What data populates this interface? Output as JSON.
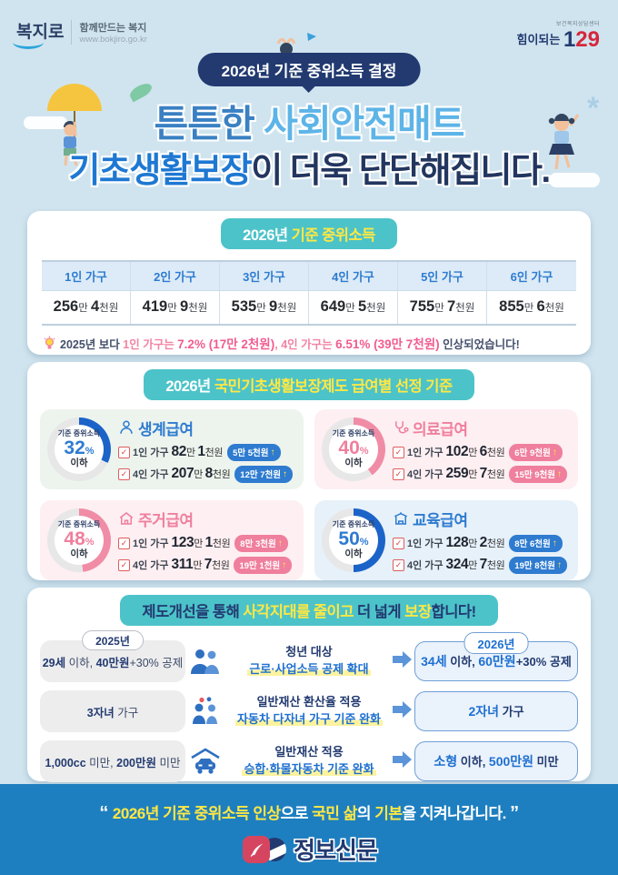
{
  "header": {
    "bokjiro": {
      "logo_text": "복지로",
      "tagline": "함께만드는 복지",
      "url": "www.bokjiro.go.kr"
    },
    "call129": {
      "small": "보건복지상담센터",
      "prefix": "힘이되는 ",
      "num_a": "1",
      "num_b": "29"
    },
    "top_badge": "2026년 기준 중위소득 결정",
    "title1": [
      {
        "t": "튼튼한 ",
        "c": "t1a"
      },
      {
        "t": "사회안전매트",
        "c": "t1b"
      }
    ],
    "title2": [
      {
        "t": "기초생활보장",
        "c": "t2a"
      },
      {
        "t": "이 더욱 ",
        "c": "t2b"
      },
      {
        "t": "단단",
        "c": "t2c"
      },
      {
        "t": "해집니다.",
        "c": "t2b"
      }
    ]
  },
  "median_card": {
    "badge": [
      {
        "t": "2026년 ",
        "c": "wt"
      },
      {
        "t": "기준 중위소득",
        "c": "yl"
      }
    ],
    "columns": [
      "1인 가구",
      "2인 가구",
      "3인 가구",
      "4인 가구",
      "5인 가구",
      "6인 가구"
    ],
    "values": [
      [
        {
          "t": "256",
          "c": "vn"
        },
        {
          "t": "만 ",
          "c": "vu"
        },
        {
          "t": "4",
          "c": "vn"
        },
        {
          "t": "천원",
          "c": "vu"
        }
      ],
      [
        {
          "t": "419",
          "c": "vn"
        },
        {
          "t": "만 ",
          "c": "vu"
        },
        {
          "t": "9",
          "c": "vn"
        },
        {
          "t": "천원",
          "c": "vu"
        }
      ],
      [
        {
          "t": "535",
          "c": "vn"
        },
        {
          "t": "만 ",
          "c": "vu"
        },
        {
          "t": "9",
          "c": "vn"
        },
        {
          "t": "천원",
          "c": "vu"
        }
      ],
      [
        {
          "t": "649",
          "c": "vn"
        },
        {
          "t": "만 ",
          "c": "vu"
        },
        {
          "t": "5",
          "c": "vn"
        },
        {
          "t": "천원",
          "c": "vu"
        }
      ],
      [
        {
          "t": "755",
          "c": "vn"
        },
        {
          "t": "만 ",
          "c": "vu"
        },
        {
          "t": "7",
          "c": "vn"
        },
        {
          "t": "천원",
          "c": "vu"
        }
      ],
      [
        {
          "t": "855",
          "c": "vn"
        },
        {
          "t": "만 ",
          "c": "vu"
        },
        {
          "t": "6",
          "c": "vn"
        },
        {
          "t": "천원",
          "c": "vu"
        }
      ]
    ],
    "note": [
      {
        "t": "2025년 보다 ",
        "c": "nt"
      },
      {
        "t": "1인 가구는 ",
        "c": "np"
      },
      {
        "t": "7.2% (17만 2천원)",
        "c": "npb"
      },
      {
        "t": ", ",
        "c": "np"
      },
      {
        "t": "4인 가구는 ",
        "c": "np"
      },
      {
        "t": "6.51% (39만 7천원)",
        "c": "npb"
      },
      {
        "t": " 인상되었습니다!",
        "c": "nt"
      }
    ]
  },
  "benefits_card": {
    "badge": [
      {
        "t": "2026년 ",
        "c": "wt"
      },
      {
        "t": "국민기초생활보장제도 급여별 선정 기준",
        "c": "yl"
      }
    ],
    "items": [
      {
        "name": "생계급여",
        "icon": "person-icon",
        "theme": "blue",
        "ring": "#1b63c8",
        "percent": 32,
        "percent_label": "기준 중위소득",
        "percent_rich": [
          {
            "t": "32",
            "c": "pn"
          },
          {
            "t": "%",
            "c": "ps"
          }
        ],
        "below": "이하",
        "rows": [
          {
            "label": "1인 가구",
            "amount": [
              {
                "t": "82",
                "c": "bn"
              },
              {
                "t": "만 ",
                "c": "bu"
              },
              {
                "t": "1",
                "c": "bn"
              },
              {
                "t": "천원",
                "c": "bu"
              }
            ],
            "badge": "5만 5천원"
          },
          {
            "label": "4인 가구",
            "amount": [
              {
                "t": "207",
                "c": "bn"
              },
              {
                "t": "만 ",
                "c": "bu"
              },
              {
                "t": "8",
                "c": "bn"
              },
              {
                "t": "천원",
                "c": "bu"
              }
            ],
            "badge": "12만 7천원"
          }
        ]
      },
      {
        "name": "의료급여",
        "icon": "stethoscope-icon",
        "theme": "pink",
        "ring": "#f08ca6",
        "percent": 40,
        "percent_label": "기준 중위소득",
        "percent_rich": [
          {
            "t": "40",
            "c": "pn"
          },
          {
            "t": "%",
            "c": "ps"
          }
        ],
        "below": "이하",
        "rows": [
          {
            "label": "1인 가구",
            "amount": [
              {
                "t": "102",
                "c": "bn"
              },
              {
                "t": "만 ",
                "c": "bu"
              },
              {
                "t": "6",
                "c": "bn"
              },
              {
                "t": "천원",
                "c": "bu"
              }
            ],
            "badge": "6만 9천원"
          },
          {
            "label": "4인 가구",
            "amount": [
              {
                "t": "259",
                "c": "bn"
              },
              {
                "t": "만 ",
                "c": "bu"
              },
              {
                "t": "7",
                "c": "bn"
              },
              {
                "t": "천원",
                "c": "bu"
              }
            ],
            "badge": "15만 9천원"
          }
        ]
      },
      {
        "name": "주거급여",
        "icon": "house-icon",
        "theme": "pink",
        "ring": "#f08ca6",
        "percent": 48,
        "percent_label": "기준 중위소득",
        "percent_rich": [
          {
            "t": "48",
            "c": "pn"
          },
          {
            "t": "%",
            "c": "ps"
          }
        ],
        "below": "이하",
        "rows": [
          {
            "label": "1인 가구",
            "amount": [
              {
                "t": "123",
                "c": "bn"
              },
              {
                "t": "만 ",
                "c": "bu"
              },
              {
                "t": "1",
                "c": "bn"
              },
              {
                "t": "천원",
                "c": "bu"
              }
            ],
            "badge": "8만 3천원"
          },
          {
            "label": "4인 가구",
            "amount": [
              {
                "t": "311",
                "c": "bn"
              },
              {
                "t": "만 ",
                "c": "bu"
              },
              {
                "t": "7",
                "c": "bn"
              },
              {
                "t": "천원",
                "c": "bu"
              }
            ],
            "badge": "19만 1천원"
          }
        ]
      },
      {
        "name": "교육급여",
        "icon": "school-icon",
        "theme": "blue",
        "ring": "#1b63c8",
        "percent": 50,
        "percent_label": "기준 중위소득",
        "percent_rich": [
          {
            "t": "50",
            "c": "pn"
          },
          {
            "t": "%",
            "c": "ps"
          }
        ],
        "below": "이하",
        "rows": [
          {
            "label": "1인 가구",
            "amount": [
              {
                "t": "128",
                "c": "bn"
              },
              {
                "t": "만 ",
                "c": "bu"
              },
              {
                "t": "2",
                "c": "bn"
              },
              {
                "t": "천원",
                "c": "bu"
              }
            ],
            "badge": "8만 6천원"
          },
          {
            "label": "4인 가구",
            "amount": [
              {
                "t": "324",
                "c": "bn"
              },
              {
                "t": "만 ",
                "c": "bu"
              },
              {
                "t": "7",
                "c": "bn"
              },
              {
                "t": "천원",
                "c": "bu"
              }
            ],
            "badge": "19만 8천원"
          }
        ]
      }
    ]
  },
  "reform_card": {
    "badge": [
      {
        "t": "제도개선을 통해 ",
        "c": "nv"
      },
      {
        "t": "사각지대를 줄이고",
        "c": "yl"
      },
      {
        "t": " 더 넓게 ",
        "c": "nv"
      },
      {
        "t": "보장",
        "c": "yl"
      },
      {
        "t": "합니다!",
        "c": "nv"
      }
    ],
    "left_year": "2025년",
    "right_year": "2026년",
    "rows": [
      {
        "icon": "people-icon",
        "before": [
          {
            "t": "29세",
            "c": "bb"
          },
          {
            "t": " 이하, ",
            "c": "bn2"
          },
          {
            "t": "40만원",
            "c": "bb"
          },
          {
            "t": "+30% 공제",
            "c": "bn2"
          }
        ],
        "mid1": "청년 대상",
        "mid2": "근로·사업소득 공제 확대",
        "after": [
          {
            "t": "34세",
            "c": "ab"
          },
          {
            "t": " 이하, ",
            "c": "an"
          },
          {
            "t": "60만원",
            "c": "ab"
          },
          {
            "t": "+30% 공제",
            "c": "an"
          }
        ]
      },
      {
        "icon": "children-icon",
        "before": [
          {
            "t": "3자녀",
            "c": "bb"
          },
          {
            "t": " 가구",
            "c": "bn2"
          }
        ],
        "mid1": "일반재산 환산율 적용",
        "mid2": "자동차 다자녀 가구 기준 완화",
        "after": [
          {
            "t": "2자녀",
            "c": "ab"
          },
          {
            "t": " 가구",
            "c": "an"
          }
        ]
      },
      {
        "icon": "car-icon",
        "before": [
          {
            "t": "1,000cc",
            "c": "bb"
          },
          {
            "t": " 미만, ",
            "c": "bn2"
          },
          {
            "t": "200만원",
            "c": "bb"
          },
          {
            "t": " 미만",
            "c": "bn2"
          }
        ],
        "mid1": "일반재산 적용",
        "mid2": "승합·화물자동차 기준 완화",
        "after": [
          {
            "t": "소형",
            "c": "ab"
          },
          {
            "t": " 이하, ",
            "c": "an"
          },
          {
            "t": "500만원",
            "c": "ab"
          },
          {
            "t": " 미만",
            "c": "an"
          }
        ]
      }
    ]
  },
  "footer": {
    "quote": [
      {
        "t": "“ ",
        "c": "fq"
      },
      {
        "t": "2026년 기준 중위소득 인상",
        "c": "fy"
      },
      {
        "t": "으로 ",
        "c": "fw"
      },
      {
        "t": "국민 ",
        "c": "fy"
      },
      {
        "t": "삶",
        "c": "fy"
      },
      {
        "t": "의 ",
        "c": "fw"
      },
      {
        "t": "기본",
        "c": "fy"
      },
      {
        "t": "을 지켜나갑니다. ",
        "c": "fw"
      },
      {
        "t": "”",
        "c": "fq"
      }
    ],
    "publisher": "정보신문"
  },
  "colors": {
    "background": "#d0e4ef",
    "teal": "#4cc3c9",
    "navy": "#223a70",
    "blue": "#2e7bd0",
    "pink": "#ef7f9d",
    "yellow": "#ffe843",
    "footer_blue": "#1e7fc0",
    "red": "#d6273b"
  }
}
